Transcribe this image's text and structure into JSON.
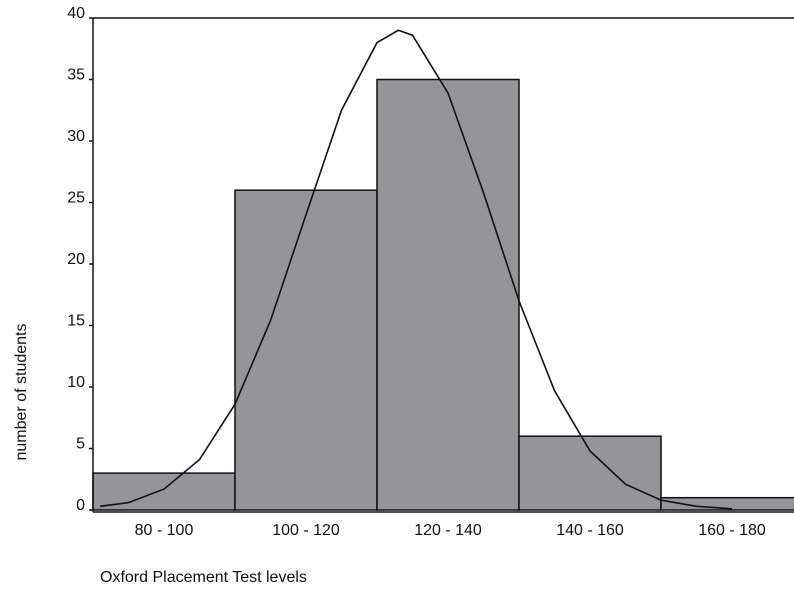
{
  "chart_data": {
    "type": "histogram",
    "x_label": "Oxford Placement Test levels",
    "y_label": "number of students",
    "categories": [
      "80 - 100",
      "100 - 120",
      "120 - 140",
      "140 - 160",
      "160 - 180"
    ],
    "values": [
      3,
      26,
      35,
      6,
      1
    ],
    "color": "#939598",
    "ylim": [
      0,
      40
    ],
    "yticks": [
      0,
      5,
      10,
      15,
      20,
      25,
      30,
      35,
      40
    ],
    "xlim": [
      80,
      180
    ],
    "curve": {
      "x": [
        81,
        85,
        90,
        95,
        100,
        105,
        110,
        115,
        120,
        123,
        125,
        130,
        135,
        140,
        145,
        150,
        155,
        160,
        165,
        170
      ],
      "values": [
        0.3,
        0.6,
        1.7,
        4.1,
        8.6,
        15.4,
        24.0,
        32.5,
        38.0,
        39.0,
        38.6,
        33.9,
        25.8,
        17.0,
        9.7,
        4.8,
        2.1,
        0.8,
        0.3,
        0.1
      ]
    }
  }
}
